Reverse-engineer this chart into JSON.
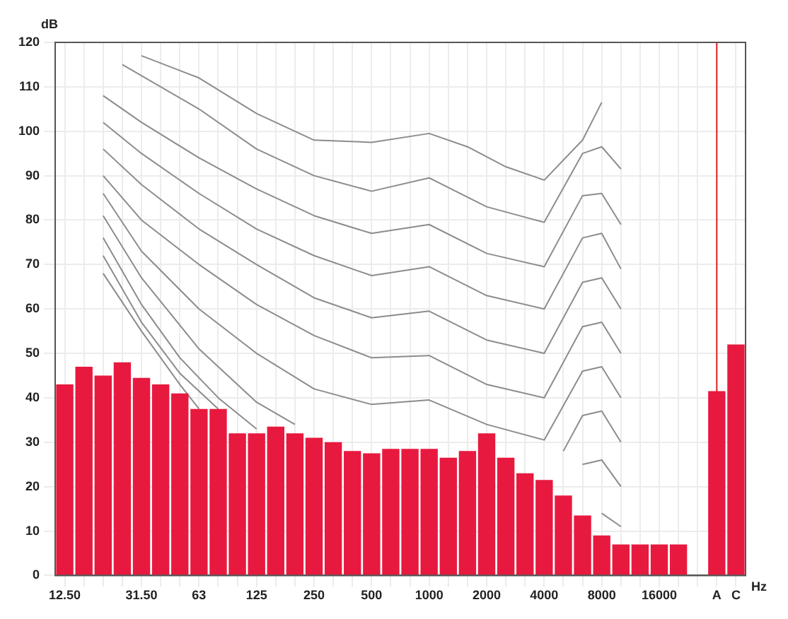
{
  "chart_data": {
    "type": "bar",
    "ylabel": "dB",
    "xlabel": "Hz",
    "categories": [
      "12.50",
      null,
      null,
      null,
      "31.50",
      null,
      null,
      "63",
      null,
      null,
      "125",
      null,
      null,
      "250",
      null,
      null,
      "500",
      null,
      null,
      "1000",
      null,
      null,
      "2000",
      null,
      null,
      "4000",
      null,
      null,
      "8000",
      null,
      null,
      "16000",
      null,
      null,
      "A",
      "C"
    ],
    "series": [
      {
        "color": "#e8193f",
        "values": [
          43,
          47,
          45,
          48,
          44.5,
          43,
          41,
          37.5,
          37.5,
          32,
          32,
          33.5,
          32,
          31,
          30,
          28,
          27.5,
          28.5,
          28.5,
          28.5,
          26.5,
          28,
          32,
          26.5,
          23,
          21.5,
          18,
          13.5,
          9,
          7,
          7,
          7,
          7,
          null,
          41.5,
          52
        ]
      },
      {
        "type": "line",
        "color": "#8c8c8c",
        "values": [
          null,
          null,
          null,
          null,
          117,
          null,
          null,
          112,
          null,
          null,
          104,
          null,
          null,
          98,
          null,
          null,
          97.5,
          null,
          null,
          99.5,
          null,
          96.5,
          null,
          92,
          null,
          89,
          null,
          98,
          106.5,
          null,
          null,
          null,
          null,
          null,
          null,
          null
        ]
      },
      {
        "type": "line",
        "color": "#8c8c8c",
        "values": [
          null,
          null,
          null,
          115,
          null,
          null,
          null,
          105,
          null,
          null,
          96,
          null,
          null,
          90,
          null,
          null,
          86.5,
          null,
          null,
          89.5,
          null,
          null,
          83,
          null,
          null,
          79.5,
          null,
          95,
          96.5,
          91.5,
          null,
          null,
          null,
          null,
          null,
          null
        ]
      },
      {
        "type": "line",
        "color": "#8c8c8c",
        "values": [
          null,
          null,
          108,
          null,
          102,
          null,
          null,
          94,
          null,
          null,
          87,
          null,
          null,
          81,
          null,
          null,
          77,
          null,
          null,
          79,
          null,
          null,
          72.5,
          null,
          null,
          69.5,
          null,
          85.5,
          86,
          79,
          null,
          null,
          null,
          null,
          null,
          null
        ]
      },
      {
        "type": "line",
        "color": "#8c8c8c",
        "values": [
          null,
          null,
          102,
          null,
          95,
          null,
          null,
          86,
          null,
          null,
          78,
          null,
          null,
          72,
          null,
          null,
          67.5,
          null,
          null,
          69.5,
          null,
          null,
          63,
          null,
          null,
          60,
          null,
          76,
          77,
          69,
          null,
          null,
          null,
          null,
          null,
          null
        ]
      },
      {
        "type": "line",
        "color": "#8c8c8c",
        "values": [
          null,
          null,
          96,
          null,
          88,
          null,
          null,
          78,
          null,
          null,
          70,
          null,
          null,
          62.5,
          null,
          null,
          58,
          null,
          null,
          59.5,
          null,
          null,
          53,
          null,
          null,
          50,
          null,
          66,
          67,
          60,
          null,
          null,
          null,
          null,
          null,
          null
        ]
      },
      {
        "type": "line",
        "color": "#8c8c8c",
        "values": [
          null,
          null,
          90,
          null,
          80,
          null,
          null,
          70,
          null,
          null,
          61,
          null,
          null,
          54,
          null,
          null,
          49,
          null,
          null,
          49.5,
          null,
          null,
          43,
          null,
          null,
          40,
          null,
          56,
          57,
          50,
          null,
          null,
          null,
          null,
          null,
          null
        ]
      },
      {
        "type": "line",
        "color": "#8c8c8c",
        "values": [
          null,
          null,
          86,
          null,
          73,
          null,
          null,
          60,
          null,
          null,
          50,
          null,
          null,
          42,
          null,
          null,
          38.5,
          null,
          null,
          39.5,
          null,
          null,
          34,
          null,
          null,
          30.5,
          null,
          46,
          47,
          40,
          null,
          null,
          null,
          null,
          null,
          null
        ]
      },
      {
        "type": "line",
        "color": "#8c8c8c",
        "values": [
          null,
          null,
          81,
          null,
          67,
          null,
          null,
          51,
          null,
          null,
          39,
          null,
          34,
          null,
          null,
          null,
          null,
          null,
          null,
          null,
          null,
          null,
          null,
          null,
          null,
          null,
          null,
          null,
          null,
          null,
          null,
          null,
          null,
          null,
          null,
          null
        ]
      },
      {
        "type": "line",
        "color": "#8c8c8c",
        "values": [
          null,
          null,
          null,
          null,
          null,
          null,
          null,
          null,
          null,
          null,
          null,
          null,
          null,
          null,
          null,
          null,
          null,
          null,
          null,
          null,
          null,
          null,
          null,
          null,
          null,
          null,
          28,
          36,
          37,
          30,
          null,
          null,
          null,
          null,
          null,
          null
        ]
      },
      {
        "type": "line",
        "color": "#8c8c8c",
        "values": [
          null,
          null,
          76,
          null,
          61,
          null,
          49,
          null,
          40,
          null,
          33,
          null,
          null,
          null,
          null,
          null,
          null,
          null,
          null,
          null,
          null,
          null,
          null,
          null,
          null,
          null,
          null,
          null,
          null,
          null,
          null,
          null,
          null,
          null,
          null,
          null
        ]
      },
      {
        "type": "line",
        "color": "#8c8c8c",
        "values": [
          null,
          null,
          null,
          null,
          null,
          null,
          null,
          null,
          null,
          null,
          null,
          null,
          null,
          null,
          null,
          null,
          null,
          null,
          null,
          null,
          null,
          null,
          null,
          null,
          null,
          null,
          null,
          25,
          26,
          20,
          null,
          null,
          null,
          null,
          null,
          null
        ]
      },
      {
        "type": "line",
        "color": "#8c8c8c",
        "values": [
          null,
          null,
          72,
          null,
          57,
          null,
          45.5,
          null,
          37.5,
          null,
          null,
          null,
          null,
          null,
          null,
          null,
          null,
          null,
          null,
          null,
          null,
          null,
          null,
          null,
          null,
          null,
          null,
          null,
          null,
          null,
          null,
          null,
          null,
          null,
          null,
          null
        ]
      },
      {
        "type": "line",
        "color": "#8c8c8c",
        "values": [
          null,
          null,
          null,
          null,
          null,
          null,
          null,
          null,
          null,
          null,
          null,
          null,
          null,
          null,
          null,
          null,
          null,
          null,
          null,
          null,
          null,
          null,
          null,
          null,
          null,
          null,
          null,
          null,
          14,
          11,
          null,
          null,
          null,
          null,
          null,
          null
        ]
      },
      {
        "type": "line",
        "color": "#8c8c8c",
        "values": [
          null,
          null,
          68,
          null,
          55,
          null,
          43,
          37.5,
          null,
          null,
          null,
          null,
          null,
          null,
          null,
          null,
          null,
          null,
          null,
          null,
          null,
          null,
          null,
          null,
          null,
          null,
          null,
          null,
          null,
          null,
          null,
          null,
          null,
          null,
          null,
          null
        ]
      }
    ],
    "ylim": [
      0,
      120
    ],
    "yticks": [
      0,
      10,
      20,
      30,
      40,
      50,
      60,
      70,
      80,
      90,
      100,
      110,
      120
    ],
    "ref_lines": [
      {
        "axis": "x",
        "value": "A",
        "color": "#e02020"
      }
    ],
    "grid": true,
    "legend": false,
    "marker": "none",
    "line_style": "solid"
  }
}
